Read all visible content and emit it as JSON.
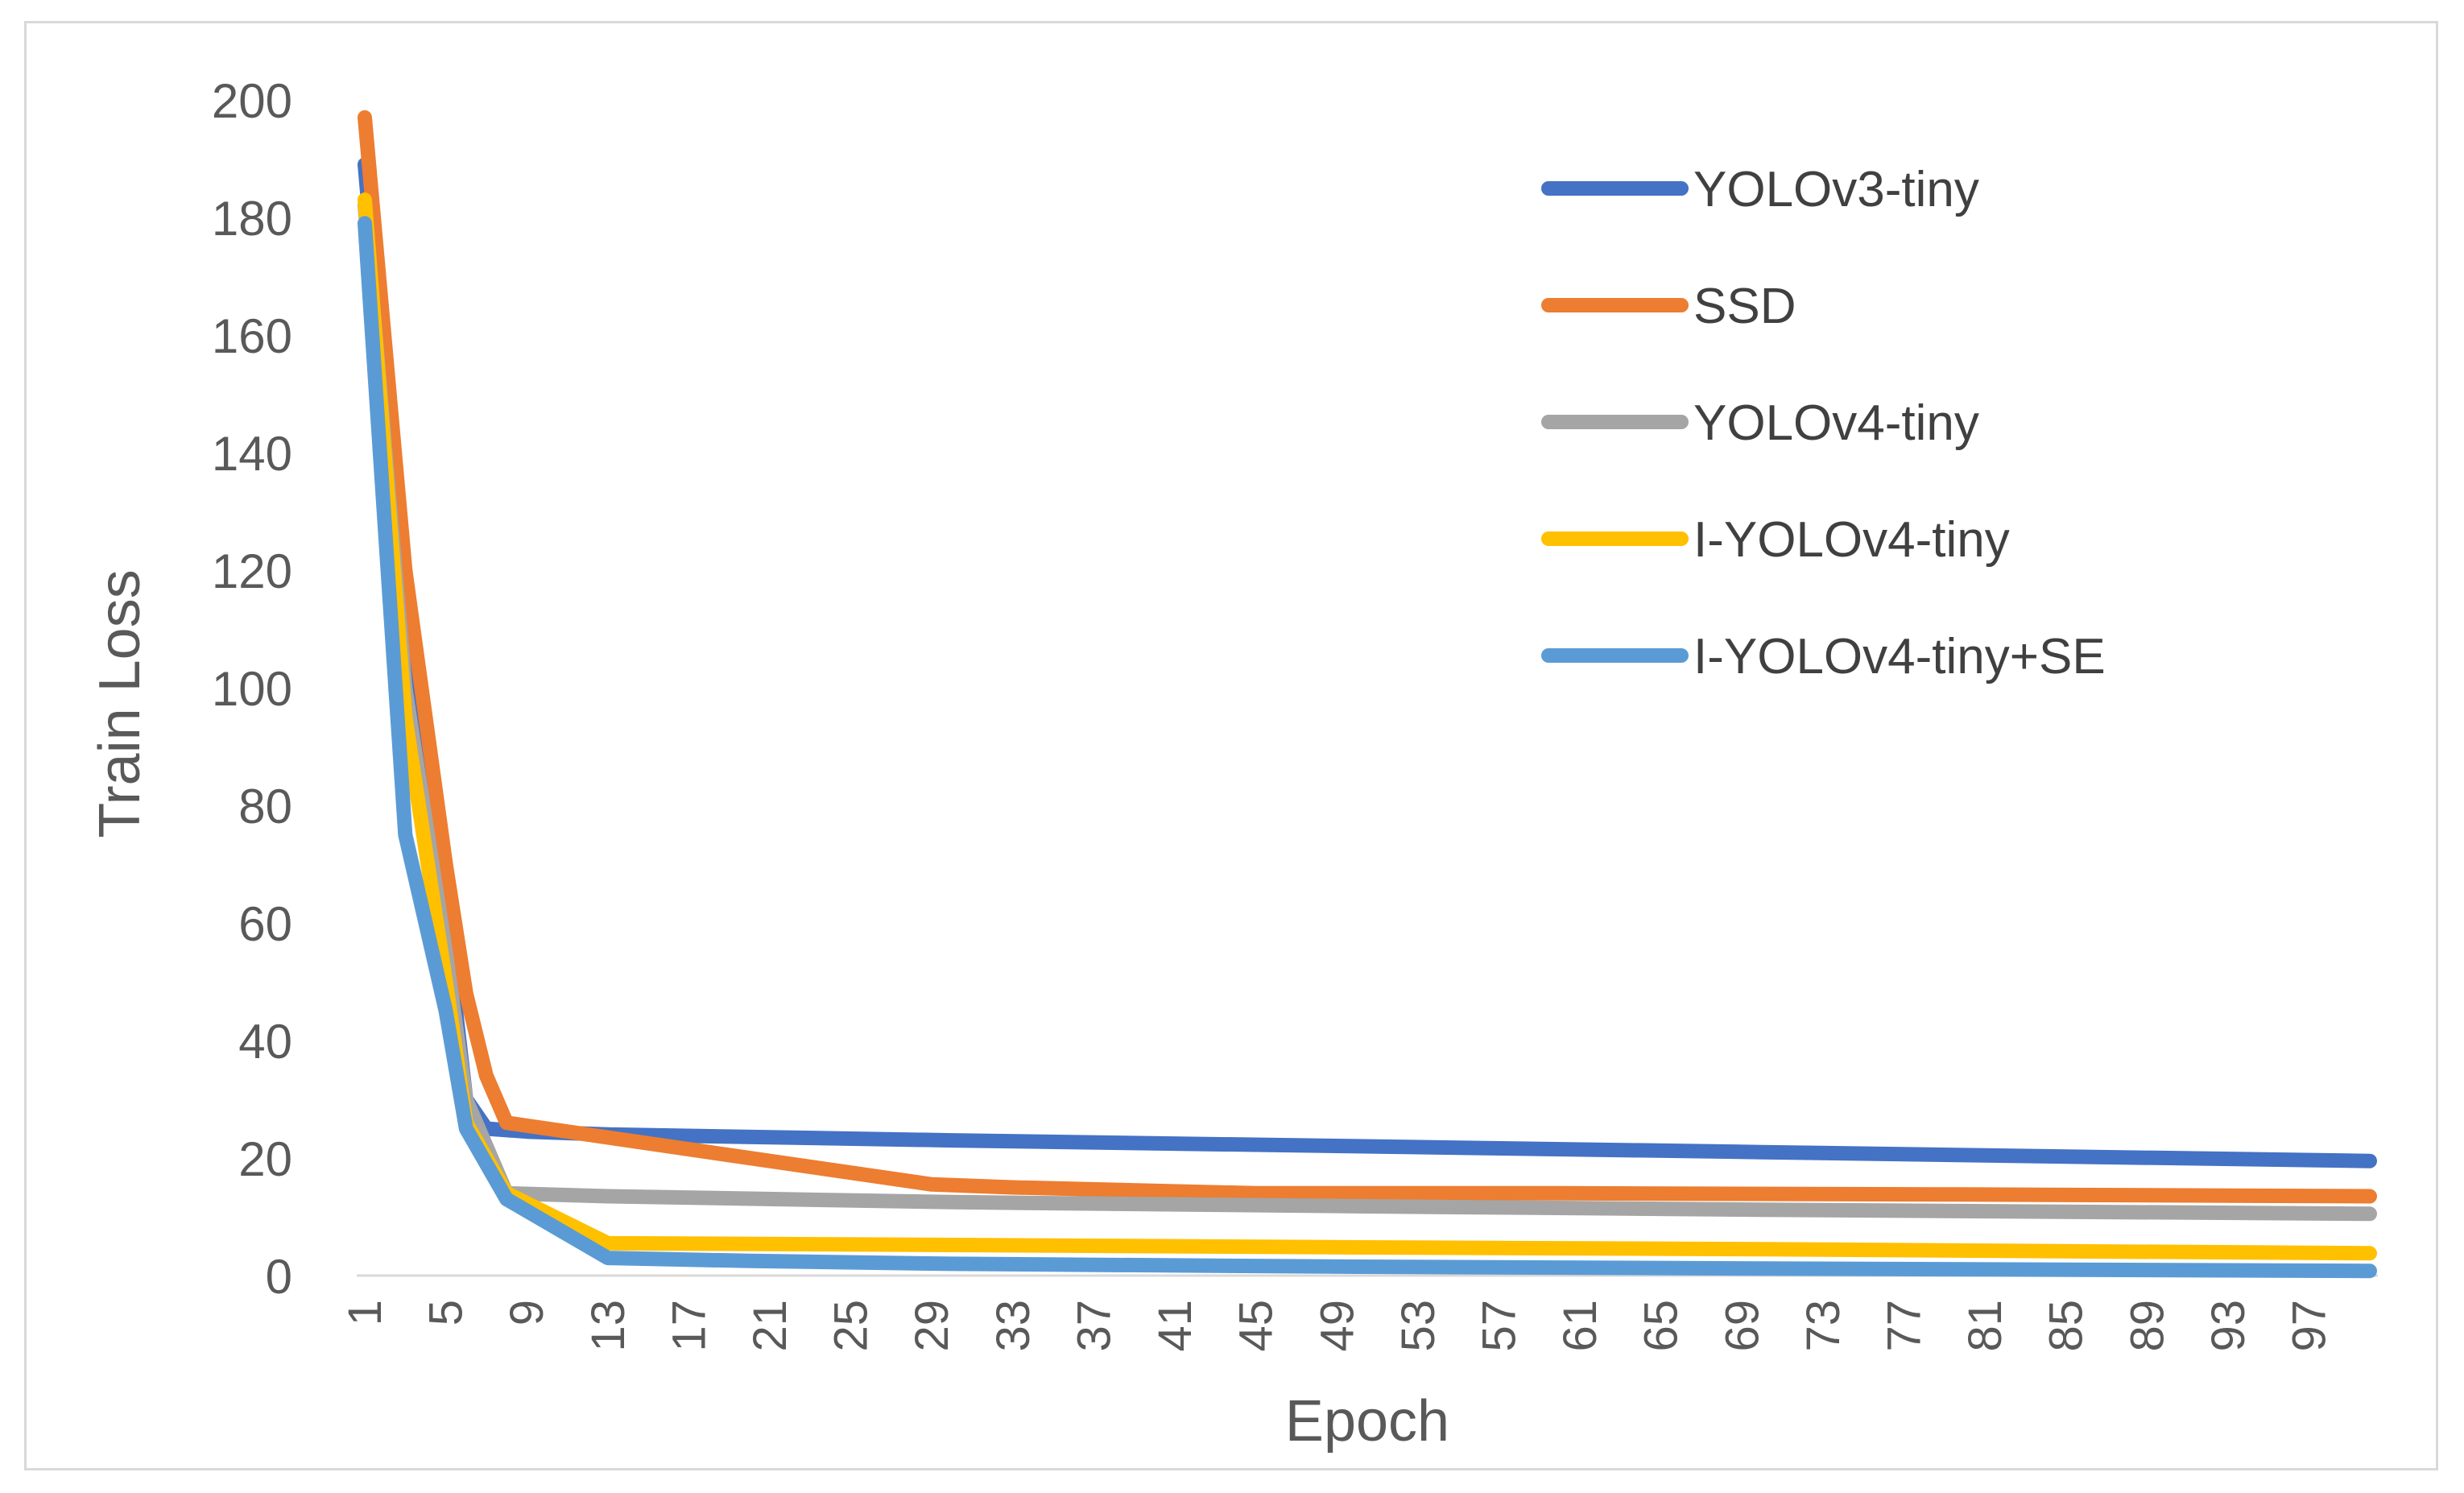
{
  "chart_data": {
    "type": "line",
    "title": "",
    "xlabel": "Epoch",
    "ylabel": "Train Loss",
    "ylim": [
      0,
      200
    ],
    "yticks": [
      0,
      20,
      40,
      60,
      80,
      100,
      120,
      140,
      160,
      180,
      200
    ],
    "xticks": [
      1,
      5,
      9,
      13,
      17,
      21,
      25,
      29,
      33,
      37,
      41,
      45,
      49,
      53,
      57,
      61,
      65,
      69,
      73,
      77,
      81,
      85,
      89,
      93,
      97
    ],
    "xlim": [
      1,
      100
    ],
    "grid": false,
    "legend_position": "top-right",
    "series": [
      {
        "name": "YOLOv3-tiny",
        "color": "#4472C4",
        "points": [
          [
            1,
            189
          ],
          [
            3,
            110
          ],
          [
            5,
            60
          ],
          [
            6,
            30
          ],
          [
            7,
            25
          ],
          [
            9,
            24.5
          ],
          [
            13,
            24
          ],
          [
            30,
            23
          ],
          [
            50,
            22
          ],
          [
            70,
            21
          ],
          [
            100,
            19.5
          ]
        ]
      },
      {
        "name": "SSD",
        "color": "#ED7D31",
        "points": [
          [
            1,
            197
          ],
          [
            3,
            120
          ],
          [
            5,
            70
          ],
          [
            6,
            48
          ],
          [
            7,
            34
          ],
          [
            8,
            26
          ],
          [
            13,
            23.5
          ],
          [
            21,
            19.5
          ],
          [
            29,
            15.5
          ],
          [
            33,
            15
          ],
          [
            45,
            14
          ],
          [
            60,
            14
          ],
          [
            80,
            13.8
          ],
          [
            100,
            13.5
          ]
        ]
      },
      {
        "name": "YOLOv4-tiny",
        "color": "#A5A5A5",
        "points": [
          [
            1,
            182
          ],
          [
            3,
            100
          ],
          [
            5,
            55
          ],
          [
            6,
            30
          ],
          [
            8,
            14
          ],
          [
            13,
            13.5
          ],
          [
            30,
            12.5
          ],
          [
            50,
            11.8
          ],
          [
            70,
            11.2
          ],
          [
            100,
            10.5
          ]
        ]
      },
      {
        "name": "I-YOLOv4-tiny",
        "color": "#FFC000",
        "points": [
          [
            1,
            183
          ],
          [
            3,
            95
          ],
          [
            5,
            50
          ],
          [
            6,
            26
          ],
          [
            8,
            14
          ],
          [
            13,
            5.5
          ],
          [
            30,
            5.2
          ],
          [
            50,
            4.8
          ],
          [
            70,
            4.5
          ],
          [
            100,
            3.8
          ]
        ]
      },
      {
        "name": "I-YOLOv4-tiny+SE",
        "color": "#5B9BD5",
        "points": [
          [
            1,
            179
          ],
          [
            3,
            75
          ],
          [
            5,
            45
          ],
          [
            6,
            25
          ],
          [
            8,
            13
          ],
          [
            13,
            3
          ],
          [
            20,
            2.5
          ],
          [
            30,
            2
          ],
          [
            50,
            1.5
          ],
          [
            70,
            1.2
          ],
          [
            100,
            0.8
          ]
        ]
      }
    ]
  }
}
